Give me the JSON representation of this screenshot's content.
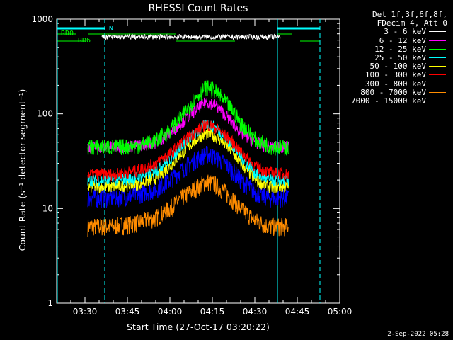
{
  "chart_data": {
    "type": "line",
    "title": "RHESSI Count Rates",
    "ylabel": "Count Rate (s⁻¹ detector segment⁻¹)",
    "xlabel": "Start Time (27-Oct-17 03:20:22)",
    "y_scale": "log",
    "ylim": [
      1,
      1000
    ],
    "y_ticks": [
      1,
      10,
      100,
      1000
    ],
    "y_tick_labels": [
      "1",
      "10",
      "100",
      "1000"
    ],
    "x_ticks": [
      "03:30",
      "03:45",
      "04:00",
      "04:15",
      "04:30",
      "04:45",
      "05:00"
    ],
    "xlim": [
      "03:20",
      "05:00"
    ],
    "legend_header": [
      "Det 1f,3f,6f,8f,",
      "FDecim 4, Att 0"
    ],
    "series": [
      {
        "name": "3 - 6 keV",
        "color": "#ffffff",
        "x": [
          "03:31",
          "03:45",
          "04:00",
          "04:05",
          "04:10",
          "04:13",
          "04:16",
          "04:20",
          "04:25",
          "04:30",
          "04:35",
          "04:39",
          "04:42"
        ],
        "y": [
          "",
          " ",
          " ",
          " ",
          " ",
          " ",
          " ",
          " ",
          " ",
          " ",
          " ",
          " ",
          " "
        ]
      },
      {
        "name": "6 - 12 keV",
        "color": "#ff00ff",
        "x": [
          "03:31",
          "03:40",
          "03:48",
          "03:55",
          "04:00",
          "04:05",
          "04:10",
          "04:13",
          "04:16",
          "04:20",
          "04:25",
          "04:30",
          "04:35",
          "04:42"
        ],
        "y": [
          45,
          45,
          46,
          50,
          62,
          85,
          115,
          135,
          125,
          95,
          63,
          50,
          45,
          45
        ]
      },
      {
        "name": "12 - 25 keV",
        "color": "#00ff00",
        "x": [
          "03:31",
          "03:40",
          "03:48",
          "03:55",
          "04:00",
          "04:05",
          "04:10",
          "04:13",
          "04:16",
          "04:20",
          "04:25",
          "04:30",
          "04:35",
          "04:42"
        ],
        "y": [
          45,
          45,
          46,
          52,
          68,
          100,
          160,
          195,
          175,
          130,
          80,
          55,
          46,
          44
        ]
      },
      {
        "name": "25 - 50 keV",
        "color": "#00ffff",
        "x": [
          "03:31",
          "03:40",
          "03:48",
          "03:55",
          "04:00",
          "04:05",
          "04:10",
          "04:13",
          "04:16",
          "04:20",
          "04:25",
          "04:30",
          "04:35",
          "04:42"
        ],
        "y": [
          20,
          20,
          21,
          25,
          33,
          48,
          65,
          80,
          72,
          55,
          35,
          24,
          20,
          20
        ]
      },
      {
        "name": "50 - 100 keV",
        "color": "#ffff00",
        "x": [
          "03:31",
          "03:40",
          "03:48",
          "03:55",
          "04:00",
          "04:05",
          "04:10",
          "04:13",
          "04:16",
          "04:20",
          "04:25",
          "04:30",
          "04:35",
          "04:42"
        ],
        "y": [
          17,
          17,
          18,
          21,
          28,
          40,
          56,
          62,
          58,
          46,
          30,
          20,
          17,
          17
        ]
      },
      {
        "name": "100 - 300 keV",
        "color": "#ff0000",
        "x": [
          "03:31",
          "03:40",
          "03:48",
          "03:55",
          "04:00",
          "04:05",
          "04:10",
          "04:13",
          "04:16",
          "04:20",
          "04:25",
          "04:30",
          "04:35",
          "04:42"
        ],
        "y": [
          23,
          23,
          25,
          30,
          38,
          52,
          68,
          78,
          72,
          58,
          40,
          28,
          24,
          23
        ]
      },
      {
        "name": "300 - 800 keV",
        "color": "#0000ff",
        "x": [
          "03:31",
          "03:40",
          "03:48",
          "03:55",
          "04:00",
          "04:05",
          "04:10",
          "04:13",
          "04:16",
          "04:20",
          "04:25",
          "04:30",
          "04:35",
          "04:42"
        ],
        "y": [
          13,
          13,
          14,
          16,
          20,
          27,
          34,
          38,
          35,
          29,
          20,
          15,
          13,
          13
        ]
      },
      {
        "name": "800 - 7000 keV",
        "color": "#ff8c00",
        "x": [
          "03:31",
          "03:40",
          "03:48",
          "03:55",
          "04:00",
          "04:05",
          "04:10",
          "04:13",
          "04:16",
          "04:20",
          "04:25",
          "04:30",
          "04:35",
          "04:42"
        ],
        "y": [
          6.5,
          6.5,
          7,
          8,
          10,
          13.5,
          17,
          19.5,
          18,
          14.5,
          10,
          7.5,
          6.5,
          6.5
        ]
      },
      {
        "name": "7000 - 15000 keV",
        "color": "#808000",
        "x": [],
        "y": []
      }
    ],
    "annotations": [
      "RD0",
      "RD6",
      "N"
    ]
  },
  "footer": "2-Sep-2022 05:28"
}
